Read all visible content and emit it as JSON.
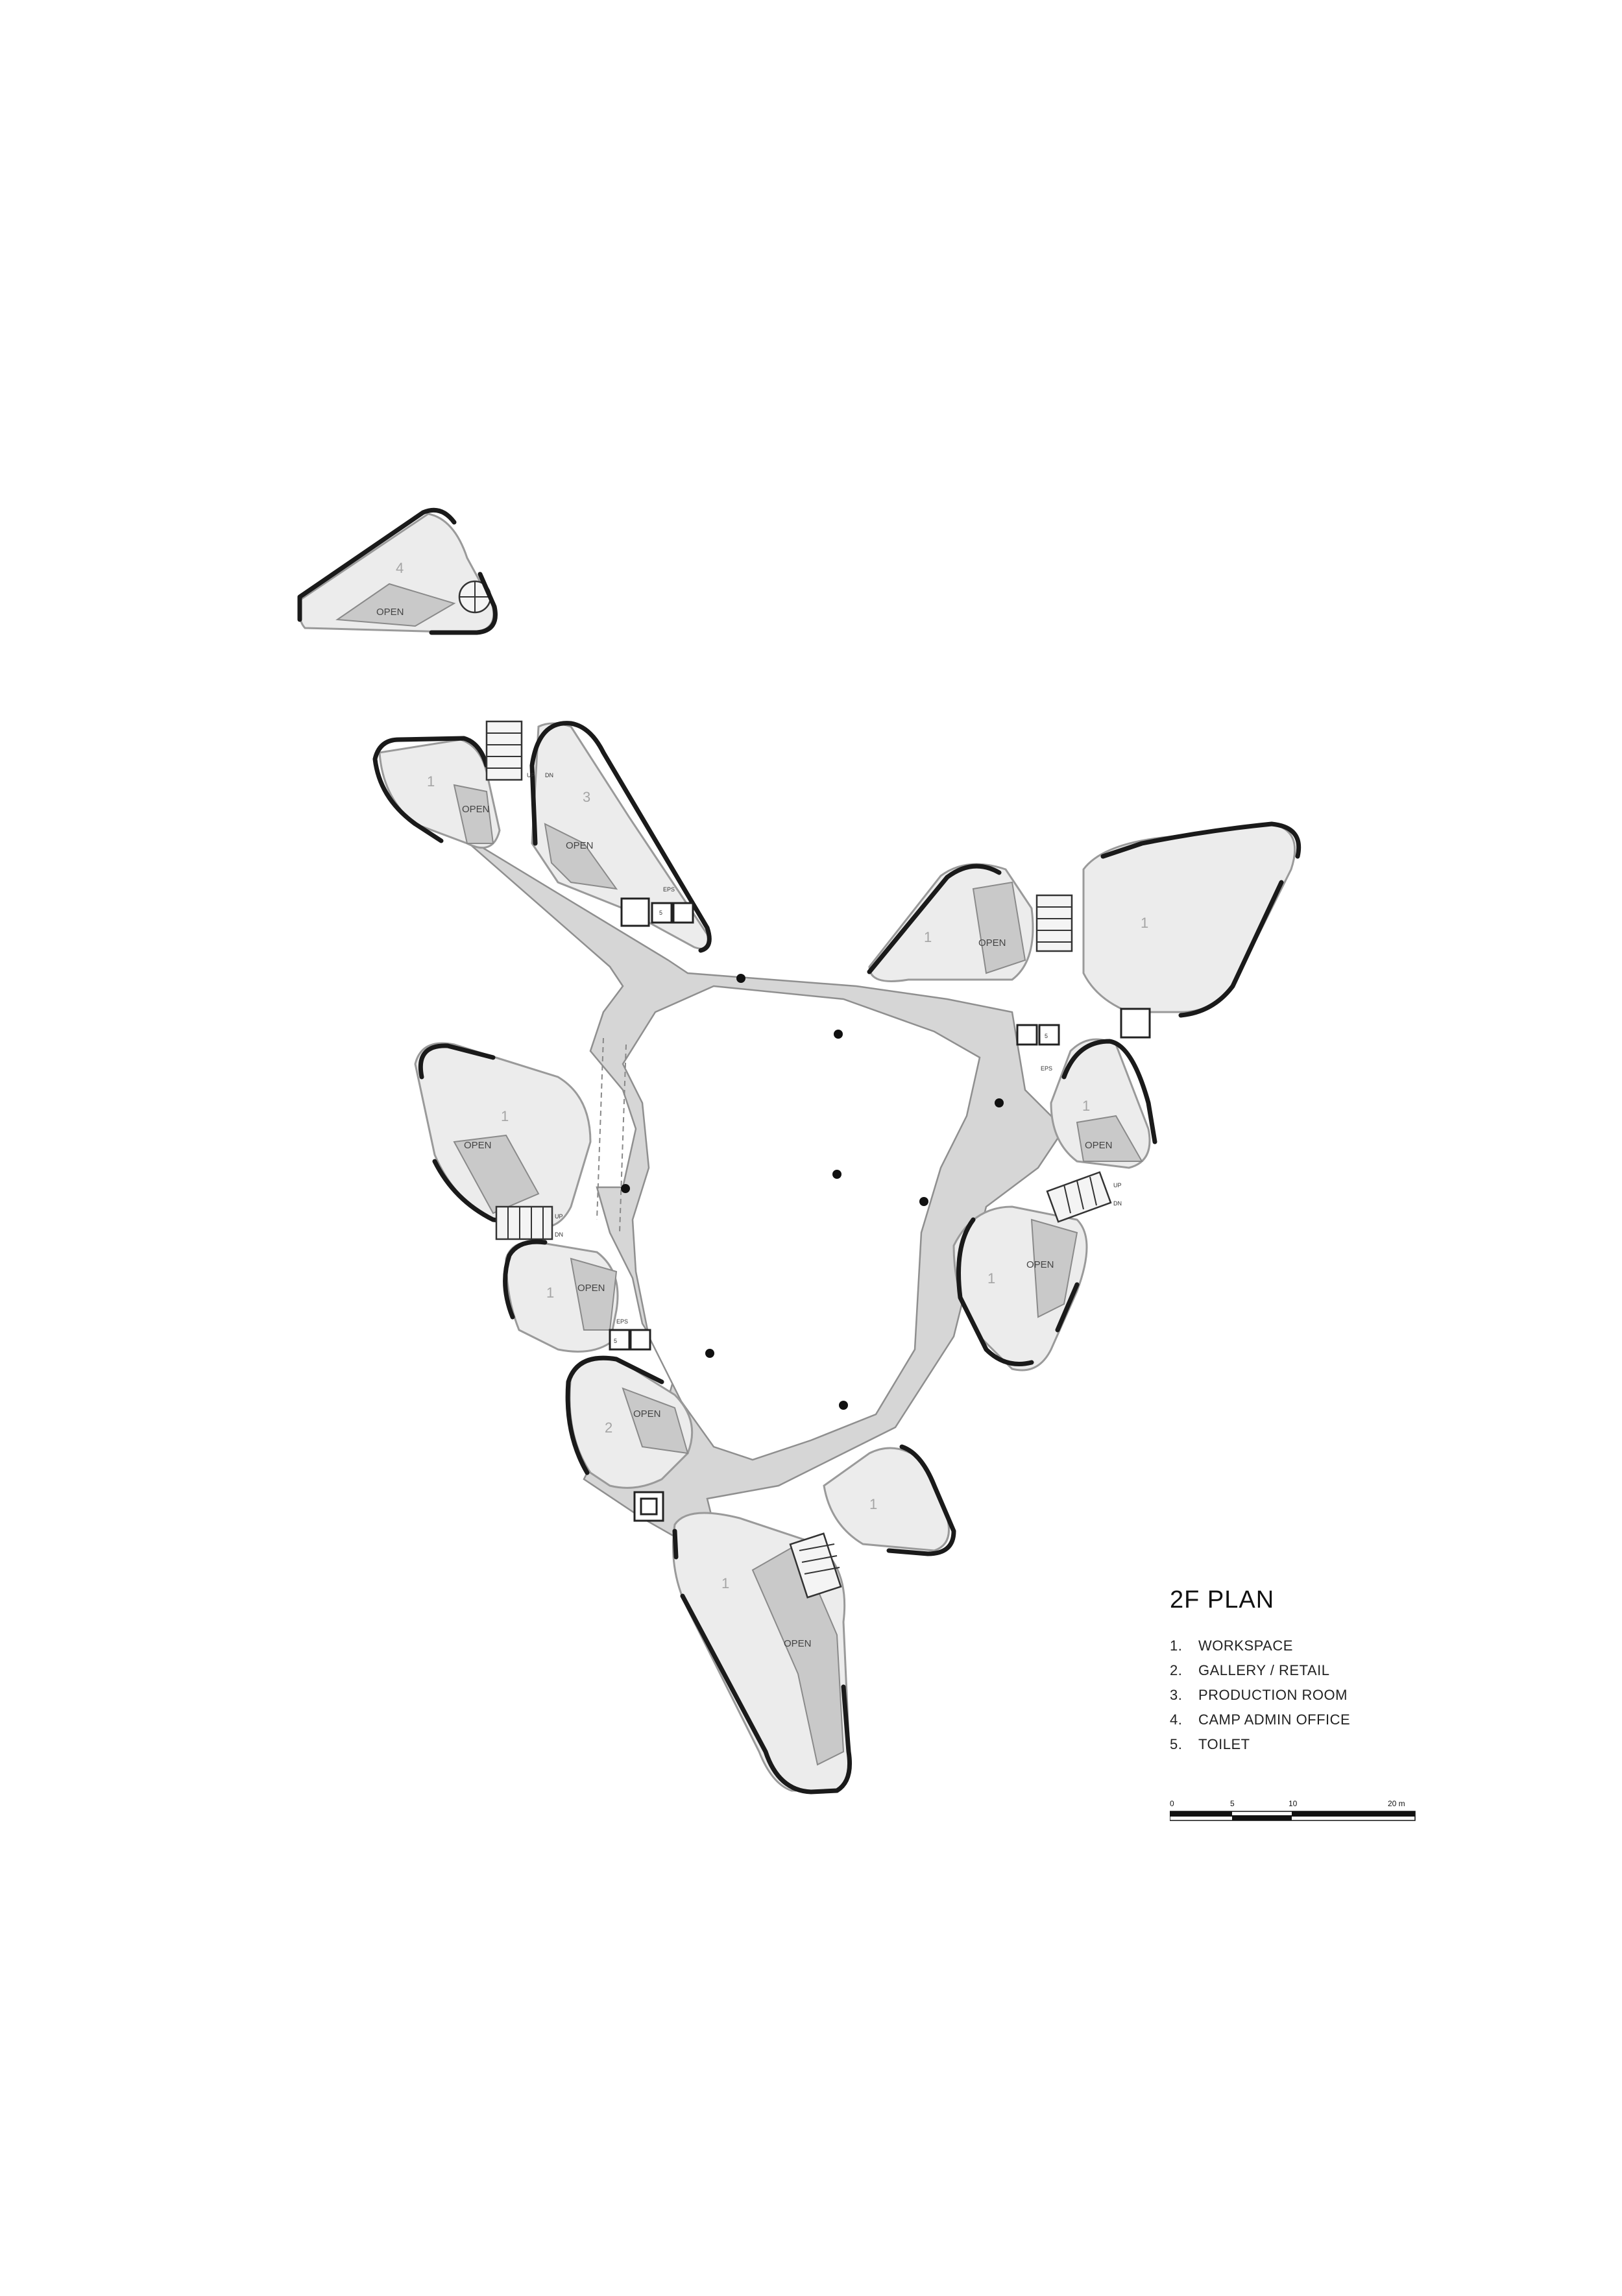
{
  "plan_title": "2F PLAN",
  "legend": [
    {
      "num": "1.",
      "label": "WORKSPACE"
    },
    {
      "num": "2.",
      "label": "GALLERY / RETAIL"
    },
    {
      "num": "3.",
      "label": "PRODUCTION ROOM"
    },
    {
      "num": "4.",
      "label": "CAMP ADMIN OFFICE"
    },
    {
      "num": "5.",
      "label": "TOILET"
    }
  ],
  "scale": {
    "ticks": [
      "0",
      "5",
      "10",
      "20 m"
    ]
  },
  "labels": {
    "open": "OPEN",
    "eps": "EPS",
    "up": "UP",
    "dn": "DN",
    "room_1": "1",
    "room_2": "2",
    "room_3": "3",
    "room_4": "4",
    "room_5": "5"
  }
}
